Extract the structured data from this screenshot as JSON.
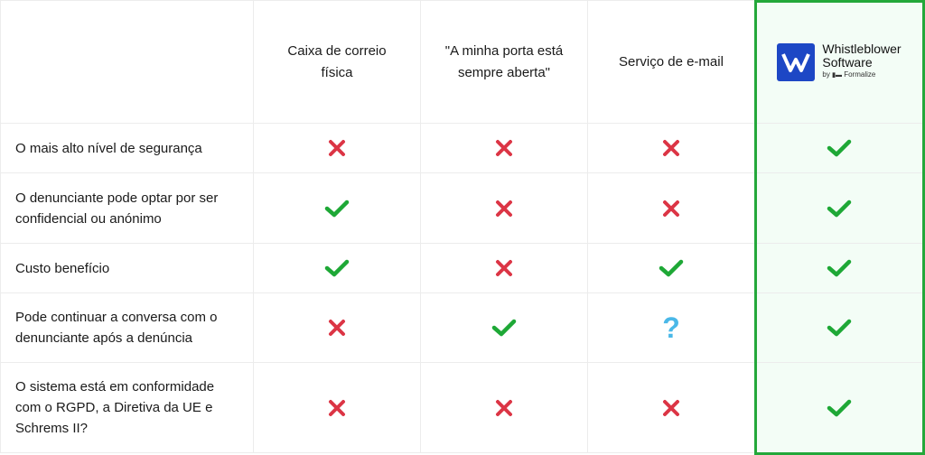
{
  "colors": {
    "check": "#1ea836",
    "cross": "#dc3545",
    "question": "#4ab8e8",
    "highlight_border": "#23a83a",
    "logo_blue": "#1d47c5"
  },
  "columns": [
    "Caixa de correio física",
    "\"A minha porta está sempre aberta\"",
    "Serviço de e-mail"
  ],
  "brand": {
    "name_line1": "Whistleblower",
    "name_line2": "Software",
    "by": "by",
    "partner": "Formalize"
  },
  "rows": [
    {
      "label": "O mais alto nível de segurança",
      "values": [
        "cross",
        "cross",
        "cross",
        "check"
      ]
    },
    {
      "label": "O denunciante pode optar por ser confidencial ou anónimo",
      "values": [
        "check",
        "cross",
        "cross",
        "check"
      ]
    },
    {
      "label": "Custo benefício",
      "values": [
        "check",
        "cross",
        "check",
        "check"
      ]
    },
    {
      "label": "Pode continuar a conversa com o denunciante após a denúncia",
      "values": [
        "cross",
        "check",
        "question",
        "check"
      ]
    },
    {
      "label": "O sistema está em conformidade com o RGPD, a Diretiva da UE e Schrems II?",
      "values": [
        "cross",
        "cross",
        "cross",
        "check"
      ]
    }
  ]
}
